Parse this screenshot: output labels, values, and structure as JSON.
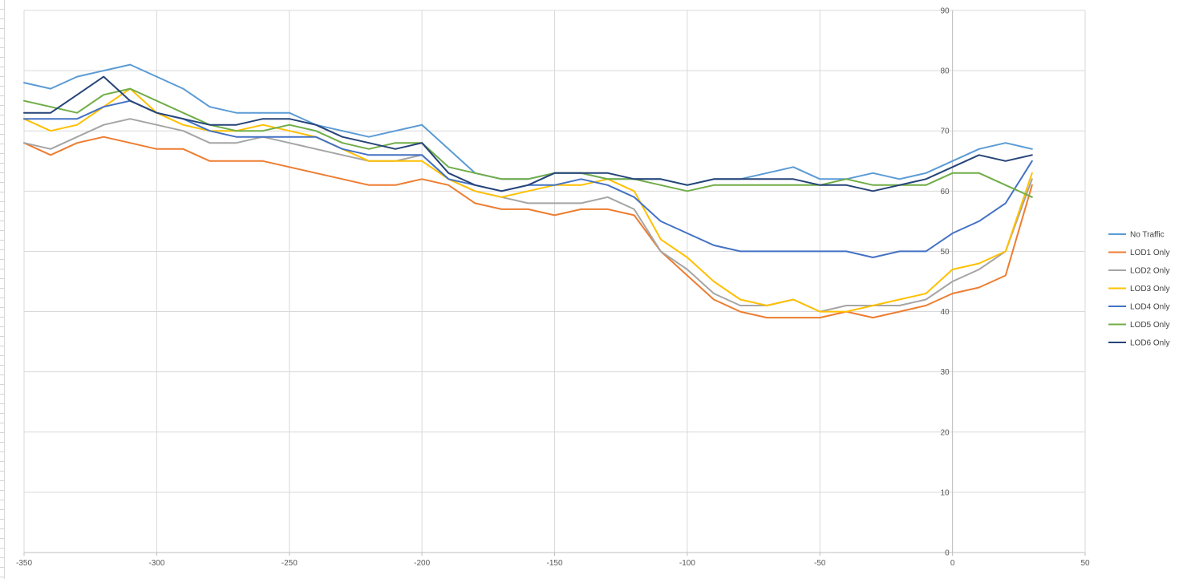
{
  "chart_data": {
    "type": "line",
    "title": "",
    "xlabel": "",
    "ylabel": "",
    "xlim": [
      -350,
      50
    ],
    "ylim": [
      0,
      90
    ],
    "x_ticks": [
      "-350",
      "-300",
      "-250",
      "-200",
      "-150",
      "-100",
      "-50",
      "0",
      "50"
    ],
    "y_ticks": [
      "0",
      "10",
      "20",
      "30",
      "40",
      "50",
      "60",
      "70",
      "80",
      "90"
    ],
    "y_axis_at_x": 0,
    "grid": true,
    "legend_position": "right",
    "x": [
      -350,
      -340,
      -330,
      -320,
      -310,
      -300,
      -290,
      -280,
      -270,
      -260,
      -250,
      -240,
      -230,
      -220,
      -210,
      -200,
      -190,
      -180,
      -170,
      -160,
      -150,
      -140,
      -130,
      -120,
      -110,
      -100,
      -90,
      -80,
      -70,
      -60,
      -50,
      -40,
      -30,
      -20,
      -10,
      0,
      10,
      20,
      30
    ],
    "series": [
      {
        "name": "No Traffic",
        "color": "#5B9BD5",
        "values": [
          78,
          77,
          79,
          80,
          81,
          79,
          77,
          74,
          73,
          73,
          73,
          71,
          70,
          69,
          70,
          71,
          67,
          63,
          62,
          62,
          63,
          63,
          62,
          62,
          62,
          61,
          62,
          62,
          63,
          64,
          62,
          62,
          63,
          62,
          63,
          65,
          67,
          68,
          67
        ]
      },
      {
        "name": "LOD1 Only",
        "color": "#ED7D31",
        "values": [
          68,
          66,
          68,
          69,
          68,
          67,
          67,
          65,
          65,
          65,
          64,
          63,
          62,
          61,
          61,
          62,
          61,
          58,
          57,
          57,
          56,
          57,
          57,
          56,
          50,
          46,
          42,
          40,
          39,
          39,
          39,
          40,
          39,
          40,
          41,
          43,
          44,
          46,
          61
        ]
      },
      {
        "name": "LOD2 Only",
        "color": "#A5A5A5",
        "values": [
          68,
          67,
          69,
          71,
          72,
          71,
          70,
          68,
          68,
          69,
          68,
          67,
          66,
          65,
          65,
          66,
          62,
          60,
          59,
          58,
          58,
          58,
          59,
          57,
          50,
          47,
          43,
          41,
          41,
          42,
          40,
          41,
          41,
          41,
          42,
          45,
          47,
          50,
          62
        ]
      },
      {
        "name": "LOD3 Only",
        "color": "#FFC000",
        "values": [
          72,
          70,
          71,
          74,
          77,
          73,
          71,
          70,
          70,
          71,
          70,
          69,
          67,
          65,
          65,
          65,
          62,
          60,
          59,
          60,
          61,
          61,
          62,
          60,
          52,
          49,
          45,
          42,
          41,
          42,
          40,
          40,
          41,
          42,
          43,
          47,
          48,
          50,
          63
        ]
      },
      {
        "name": "LOD4 Only",
        "color": "#4472C4",
        "values": [
          72,
          72,
          72,
          74,
          75,
          73,
          72,
          70,
          69,
          69,
          69,
          69,
          67,
          66,
          66,
          66,
          62,
          61,
          60,
          61,
          61,
          62,
          61,
          59,
          55,
          53,
          51,
          50,
          50,
          50,
          50,
          50,
          49,
          50,
          50,
          53,
          55,
          58,
          65
        ]
      },
      {
        "name": "LOD5 Only",
        "color": "#70AD47",
        "values": [
          75,
          74,
          73,
          76,
          77,
          75,
          73,
          71,
          70,
          70,
          71,
          70,
          68,
          67,
          68,
          68,
          64,
          63,
          62,
          62,
          63,
          63,
          62,
          62,
          61,
          60,
          61,
          61,
          61,
          61,
          61,
          62,
          61,
          61,
          61,
          63,
          63,
          61,
          59
        ]
      },
      {
        "name": "LOD6 Only",
        "color": "#264478",
        "values": [
          73,
          73,
          76,
          79,
          75,
          73,
          72,
          71,
          71,
          72,
          72,
          71,
          69,
          68,
          67,
          68,
          63,
          61,
          60,
          61,
          63,
          63,
          63,
          62,
          62,
          61,
          62,
          62,
          62,
          62,
          61,
          61,
          60,
          61,
          62,
          64,
          66,
          65,
          66
        ]
      }
    ]
  }
}
